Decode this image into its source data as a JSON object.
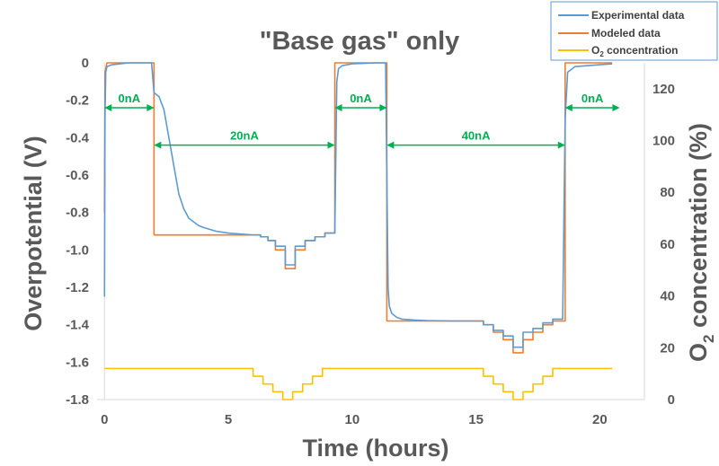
{
  "chart_data": {
    "type": "line",
    "title": "\"Base gas\" only",
    "xlabel": "Time (hours)",
    "ylabel_left": "Overpotential (V)",
    "ylabel_right_prefix": "O",
    "ylabel_right_sub": "2",
    "ylabel_right_suffix": " concentration (%)",
    "xlim": [
      -0.3,
      21.8
    ],
    "ylim_left": [
      -1.8,
      0
    ],
    "ylim_right": [
      0,
      130
    ],
    "x_ticks": [
      0,
      5,
      10,
      15,
      20
    ],
    "x_tick_labels": [
      "0",
      "5",
      "10",
      "15",
      "20"
    ],
    "y_left_ticks": [
      0,
      -0.2,
      -0.4,
      -0.6,
      -0.8,
      -1.0,
      -1.2,
      -1.4,
      -1.6,
      -1.8
    ],
    "y_left_tick_labels": [
      "0",
      "-0.2",
      "-0.4",
      "-0.6",
      "-0.8",
      "-1.0",
      "-1.2",
      "-1.4",
      "-1.6",
      "-1.8"
    ],
    "y_right_ticks": [
      0,
      20,
      40,
      60,
      80,
      100,
      120
    ],
    "y_right_tick_labels": [
      "0",
      "20",
      "40",
      "60",
      "80",
      "100",
      "120"
    ],
    "grid": false,
    "legend_placement": "top-right",
    "legend": [
      {
        "label": "Experimental data",
        "color": "#5B9BD5"
      },
      {
        "label": "Modeled data",
        "color": "#ED7D31"
      },
      {
        "label_prefix": "O",
        "label_sub": "2",
        "label_suffix": " concentration",
        "color": "#FFC000"
      }
    ],
    "series": [
      {
        "name": "Experimental data",
        "axis": "left",
        "color": "#5B9BD5",
        "x": [
          0,
          0.02,
          0.05,
          0.1,
          0.3,
          1.0,
          1.9,
          2.0,
          2.2,
          2.4,
          2.6,
          2.8,
          3.0,
          3.2,
          3.4,
          3.6,
          3.8,
          4.0,
          4.5,
          5.0,
          5.5,
          6.0,
          6.3,
          6.3,
          6.6,
          6.6,
          6.9,
          6.9,
          7.3,
          7.3,
          7.7,
          7.7,
          8.1,
          8.1,
          8.5,
          8.5,
          8.9,
          8.9,
          9.3,
          9.38,
          9.45,
          9.6,
          10.0,
          11.0,
          11.35,
          11.4,
          11.45,
          11.5,
          11.6,
          11.8,
          12.0,
          12.5,
          13.0,
          14.0,
          15.3,
          15.3,
          15.7,
          15.7,
          16.1,
          16.1,
          16.5,
          16.5,
          16.9,
          16.9,
          17.3,
          17.3,
          17.7,
          17.7,
          18.1,
          18.1,
          18.5,
          18.6,
          18.7,
          19.0,
          20.0,
          20.5
        ],
        "y": [
          -1.25,
          -0.3,
          -0.05,
          -0.02,
          -0.01,
          0,
          0,
          -0.16,
          -0.18,
          -0.25,
          -0.4,
          -0.55,
          -0.7,
          -0.78,
          -0.83,
          -0.85,
          -0.87,
          -0.88,
          -0.9,
          -0.91,
          -0.915,
          -0.92,
          -0.92,
          -0.93,
          -0.93,
          -0.95,
          -0.95,
          -0.98,
          -0.98,
          -1.08,
          -1.08,
          -0.98,
          -0.98,
          -0.95,
          -0.95,
          -0.93,
          -0.93,
          -0.91,
          -0.91,
          -0.1,
          -0.03,
          -0.015,
          -0.005,
          0,
          0,
          -0.6,
          -1.2,
          -1.3,
          -1.34,
          -1.36,
          -1.37,
          -1.375,
          -1.378,
          -1.38,
          -1.38,
          -1.4,
          -1.4,
          -1.43,
          -1.43,
          -1.46,
          -1.46,
          -1.52,
          -1.52,
          -1.44,
          -1.44,
          -1.42,
          -1.42,
          -1.39,
          -1.39,
          -1.37,
          -1.37,
          -0.3,
          -0.05,
          -0.02,
          -0.01,
          -0.005
        ]
      },
      {
        "name": "Modeled data",
        "axis": "left",
        "color": "#ED7D31",
        "x": [
          0,
          0.02,
          0.1,
          2.0,
          2.0,
          6.3,
          6.3,
          6.6,
          6.6,
          6.9,
          6.9,
          7.3,
          7.3,
          7.7,
          7.7,
          8.1,
          8.1,
          8.5,
          8.5,
          8.9,
          8.9,
          9.3,
          9.3,
          11.4,
          11.4,
          15.3,
          15.3,
          15.7,
          15.7,
          16.1,
          16.1,
          16.5,
          16.5,
          16.9,
          16.9,
          17.3,
          17.3,
          17.7,
          17.7,
          18.1,
          18.1,
          18.6,
          18.6,
          20.5
        ],
        "y": [
          -0.8,
          -0.05,
          0,
          0,
          -0.92,
          -0.92,
          -0.93,
          -0.93,
          -0.95,
          -0.95,
          -1.0,
          -1.0,
          -1.1,
          -1.1,
          -1.0,
          -1.0,
          -0.95,
          -0.95,
          -0.93,
          -0.93,
          -0.91,
          -0.91,
          0,
          0,
          -1.38,
          -1.38,
          -1.4,
          -1.4,
          -1.44,
          -1.44,
          -1.48,
          -1.48,
          -1.55,
          -1.55,
          -1.48,
          -1.48,
          -1.44,
          -1.44,
          -1.4,
          -1.4,
          -1.38,
          -1.38,
          0,
          0
        ]
      },
      {
        "name_prefix": "O",
        "name_sub": "2",
        "name_suffix": " concentration",
        "axis": "right",
        "color": "#FFC000",
        "x": [
          0,
          6.0,
          6.0,
          6.4,
          6.4,
          6.8,
          6.8,
          7.2,
          7.2,
          7.6,
          7.6,
          8.0,
          8.0,
          8.4,
          8.4,
          8.8,
          8.8,
          9.3,
          9.3,
          15.3,
          15.3,
          15.7,
          15.7,
          16.1,
          16.1,
          16.5,
          16.5,
          16.9,
          16.9,
          17.3,
          17.3,
          17.7,
          17.7,
          18.1,
          18.1,
          18.6,
          18.6,
          20.5
        ],
        "y": [
          12,
          12,
          9,
          9,
          6,
          6,
          3,
          3,
          0,
          0,
          3,
          3,
          6,
          6,
          9,
          9,
          12,
          12,
          12,
          12,
          9,
          9,
          6,
          6,
          3,
          3,
          0,
          0,
          3,
          3,
          6,
          6,
          9,
          9,
          12,
          12,
          12,
          12
        ]
      }
    ],
    "annotations": [
      {
        "text": "0nA",
        "x_start": 0,
        "x_end": 2.0,
        "y": -0.24,
        "color": "#00B050"
      },
      {
        "text": "20nA",
        "x_start": 2.0,
        "x_end": 9.3,
        "y": -0.44,
        "color": "#00B050"
      },
      {
        "text": "0nA",
        "x_start": 9.3,
        "x_end": 11.4,
        "y": -0.24,
        "color": "#00B050"
      },
      {
        "text": "40nA",
        "x_start": 11.4,
        "x_end": 18.6,
        "y": -0.44,
        "color": "#00B050"
      },
      {
        "text": "0nA",
        "x_start": 18.6,
        "x_end": 20.8,
        "y": -0.24,
        "color": "#00B050"
      }
    ]
  }
}
